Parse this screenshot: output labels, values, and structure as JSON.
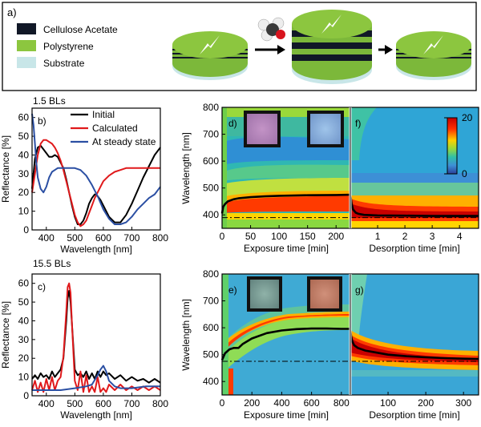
{
  "panel_a": {
    "label": "a)",
    "legend": [
      {
        "name": "Cellulose Acetate",
        "color": "#111827"
      },
      {
        "name": "Polystyrene",
        "color": "#8cc63f"
      },
      {
        "name": "Substrate",
        "color": "#c8e6e8"
      }
    ]
  },
  "headings": {
    "top": "1.5 BLs",
    "bottom": "15.5 BLs"
  },
  "colorbar": {
    "max_label": "20",
    "min_label": "0"
  },
  "chart_data": [
    {
      "id": "b",
      "label": "b)",
      "type": "line",
      "xlabel": "Wavelength [nm]",
      "ylabel": "Reflectance [%]",
      "xlim": [
        350,
        800
      ],
      "ylim": [
        0,
        65
      ],
      "xticks": [
        400,
        500,
        600,
        700,
        800
      ],
      "yticks": [
        0,
        10,
        20,
        30,
        40,
        50,
        60
      ],
      "legend": "top-right",
      "series": [
        {
          "name": "Initial",
          "color": "#000000",
          "x": [
            350,
            360,
            370,
            380,
            390,
            400,
            410,
            420,
            430,
            440,
            450,
            460,
            470,
            480,
            490,
            500,
            510,
            520,
            530,
            540,
            550,
            560,
            570,
            580,
            590,
            600,
            620,
            640,
            660,
            680,
            700,
            720,
            740,
            760,
            780,
            800
          ],
          "y": [
            22,
            38,
            44,
            45,
            43,
            41,
            39,
            39,
            40,
            39,
            36,
            33,
            27,
            20,
            13,
            7,
            3,
            3,
            5,
            9,
            14,
            17,
            19,
            18,
            16,
            13,
            7,
            4,
            4,
            8,
            14,
            21,
            28,
            34,
            40,
            44
          ]
        },
        {
          "name": "Calculated",
          "color": "#e0191b",
          "x": [
            350,
            360,
            370,
            380,
            390,
            400,
            410,
            420,
            430,
            440,
            450,
            460,
            470,
            480,
            490,
            500,
            510,
            520,
            530,
            540,
            550,
            560,
            570,
            580,
            590,
            600,
            620,
            640,
            660,
            680,
            700,
            720,
            740,
            760,
            780,
            800
          ],
          "y": [
            20,
            30,
            40,
            46,
            48,
            48,
            47,
            46,
            44,
            41,
            37,
            32,
            26,
            20,
            14,
            8,
            4,
            2,
            3,
            5,
            9,
            13,
            17,
            20,
            23,
            26,
            29,
            31,
            32,
            33,
            33,
            33,
            33,
            33,
            33,
            33
          ]
        },
        {
          "name": "At steady state",
          "color": "#2b4fa3",
          "x": [
            350,
            355,
            360,
            365,
            370,
            380,
            390,
            400,
            410,
            420,
            430,
            440,
            450,
            460,
            470,
            480,
            490,
            500,
            520,
            540,
            560,
            580,
            600,
            620,
            640,
            660,
            680,
            700,
            720,
            740,
            760,
            780,
            800
          ],
          "y": [
            62,
            56,
            46,
            36,
            28,
            22,
            20,
            23,
            28,
            31,
            32,
            33,
            33,
            33,
            33,
            33,
            33,
            33,
            32,
            29,
            24,
            18,
            11,
            6,
            3,
            3,
            4,
            7,
            11,
            14,
            17,
            19,
            23
          ]
        }
      ]
    },
    {
      "id": "c",
      "label": "c)",
      "type": "line",
      "xlabel": "Wavelength [nm]",
      "ylabel": "Reflectance [%]",
      "xlim": [
        350,
        800
      ],
      "ylim": [
        0,
        65
      ],
      "xticks": [
        400,
        500,
        600,
        700,
        800
      ],
      "yticks": [
        0,
        10,
        20,
        30,
        40,
        50,
        60
      ],
      "series": [
        {
          "name": "Initial",
          "color": "#000000",
          "x": [
            350,
            360,
            370,
            380,
            390,
            400,
            410,
            420,
            430,
            440,
            450,
            460,
            470,
            475,
            480,
            485,
            490,
            500,
            510,
            520,
            530,
            540,
            550,
            560,
            570,
            580,
            590,
            600,
            610,
            620,
            640,
            660,
            680,
            700,
            720,
            740,
            760,
            780,
            800
          ],
          "y": [
            9,
            11,
            9,
            12,
            10,
            11,
            9,
            13,
            10,
            12,
            14,
            20,
            40,
            52,
            56,
            50,
            38,
            14,
            11,
            12,
            10,
            13,
            9,
            12,
            9,
            13,
            10,
            13,
            11,
            12,
            9,
            11,
            8,
            10,
            8,
            9,
            7,
            9,
            7
          ]
        },
        {
          "name": "Calculated",
          "color": "#e0191b",
          "x": [
            350,
            360,
            370,
            380,
            390,
            400,
            410,
            420,
            430,
            440,
            450,
            460,
            470,
            475,
            480,
            485,
            490,
            500,
            510,
            520,
            530,
            540,
            550,
            560,
            570,
            580,
            590,
            600,
            610,
            620,
            640,
            660,
            680,
            700,
            720,
            740,
            760,
            780,
            800
          ],
          "y": [
            3,
            8,
            2,
            7,
            2,
            9,
            3,
            10,
            3,
            8,
            10,
            21,
            45,
            58,
            60,
            55,
            38,
            8,
            3,
            13,
            2,
            11,
            2,
            5,
            2,
            10,
            2,
            4,
            2,
            6,
            3,
            6,
            3,
            5,
            3,
            5,
            3,
            5,
            3
          ]
        },
        {
          "name": "At steady state",
          "color": "#2b4fa3",
          "x": [
            350,
            400,
            450,
            500,
            540,
            560,
            580,
            590,
            600,
            610,
            620,
            640,
            660,
            700,
            750,
            800
          ],
          "y": [
            3,
            3,
            3,
            4,
            5,
            6,
            11,
            14,
            16,
            13,
            8,
            5,
            4,
            4,
            5,
            5
          ]
        }
      ]
    },
    {
      "id": "d",
      "label": "d)",
      "type": "heatmap",
      "xlabel": "Exposure time [min]",
      "ylabel": "Wavelength [nm]",
      "xlim": [
        0,
        225
      ],
      "ylim": [
        350,
        800
      ],
      "xticks": [
        0,
        50,
        100,
        150,
        200
      ],
      "yticks": [
        400,
        500,
        600,
        700,
        800
      ],
      "peak": {
        "t": [
          0,
          2,
          5,
          10,
          20,
          30,
          50,
          75,
          100,
          150,
          200,
          225
        ],
        "wl": [
          405,
          430,
          440,
          450,
          458,
          462,
          466,
          469,
          471,
          473,
          474,
          475
        ]
      },
      "reference_line": 390
    },
    {
      "id": "f",
      "label": "f)",
      "type": "heatmap",
      "xlabel": "Desorption time [min]",
      "xlim": [
        0,
        4.7
      ],
      "xticks": [
        1,
        2,
        3,
        4
      ],
      "peak": {
        "t": [
          0,
          0.05,
          0.1,
          0.2,
          0.3,
          0.5,
          1,
          2,
          3,
          4,
          4.7
        ],
        "wl": [
          475,
          440,
          420,
          408,
          404,
          400,
          398,
          397,
          396,
          396,
          396
        ]
      },
      "reference_line": 390
    },
    {
      "id": "e",
      "label": "e)",
      "type": "heatmap",
      "xlabel": "Exposure time [min]",
      "ylabel": "Wavelength [nm]",
      "xlim": [
        0,
        860
      ],
      "ylim": [
        350,
        800
      ],
      "xticks": [
        0,
        200,
        400,
        600,
        800
      ],
      "yticks": [
        400,
        500,
        600,
        700,
        800
      ],
      "peak": {
        "t": [
          0,
          20,
          50,
          80,
          110,
          140,
          200,
          300,
          400,
          500,
          600,
          700,
          800,
          860
        ],
        "wl": [
          480,
          505,
          520,
          525,
          525,
          540,
          560,
          580,
          590,
          595,
          597,
          597,
          596,
          596
        ]
      },
      "reference_line": 475
    },
    {
      "id": "g",
      "label": "g)",
      "type": "heatmap",
      "xlabel": "Desorption time [min]",
      "xlim": [
        0,
        340
      ],
      "xticks": [
        100,
        200,
        300
      ],
      "peak": {
        "t": [
          0,
          2,
          5,
          10,
          20,
          40,
          60,
          100,
          150,
          200,
          250,
          300,
          340
        ],
        "wl": [
          596,
          570,
          550,
          535,
          525,
          515,
          510,
          500,
          494,
          490,
          487,
          485,
          484
        ]
      },
      "reference_line": 475
    }
  ]
}
